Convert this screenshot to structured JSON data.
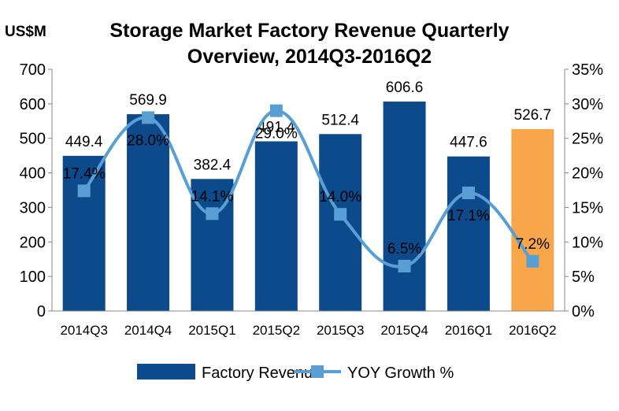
{
  "chart_data": {
    "type": "bar",
    "title_line1": "Storage Market Factory Revenue Quarterly",
    "title_line2": "Overview, 2014Q3-2016Q2",
    "unit_label": "US$M",
    "categories": [
      "2014Q3",
      "2014Q4",
      "2015Q1",
      "2015Q2",
      "2015Q3",
      "2015Q4",
      "2016Q1",
      "2016Q2"
    ],
    "bar_series": {
      "name": "Factory Revenue",
      "values": [
        449.4,
        569.9,
        382.4,
        491.4,
        512.4,
        606.6,
        447.6,
        526.7
      ],
      "labels": [
        "449.4",
        "569.9",
        "382.4",
        "491.4",
        "512.4",
        "606.6",
        "447.6",
        "526.7"
      ],
      "color": "#0d4a8b",
      "highlight_color": "#f9a64a",
      "highlight_index": 7
    },
    "line_series": {
      "name": "YOY Growth %",
      "values": [
        17.4,
        28.0,
        14.1,
        29.0,
        14.0,
        6.5,
        17.1,
        7.2
      ],
      "labels": [
        "17.4%",
        "28.0%",
        "14.1%",
        "29.0%",
        "14.0%",
        "6.5%",
        "17.1%",
        "7.2%"
      ],
      "color": "#5a9fd4"
    },
    "y_left": {
      "min": 0,
      "max": 700,
      "ticks": [
        "0",
        "100",
        "200",
        "300",
        "400",
        "500",
        "600",
        "700"
      ]
    },
    "y_right": {
      "min": 0,
      "max": 35,
      "ticks": [
        "0%",
        "5%",
        "10%",
        "15%",
        "20%",
        "25%",
        "30%",
        "35%"
      ]
    },
    "grid": false,
    "legend_position": "bottom"
  }
}
